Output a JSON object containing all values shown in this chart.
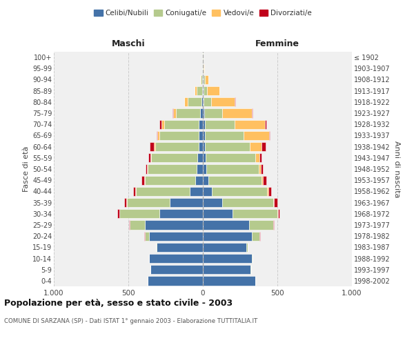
{
  "age_groups": [
    "0-4",
    "5-9",
    "10-14",
    "15-19",
    "20-24",
    "25-29",
    "30-34",
    "35-39",
    "40-44",
    "45-49",
    "50-54",
    "55-59",
    "60-64",
    "65-69",
    "70-74",
    "75-79",
    "80-84",
    "85-89",
    "90-94",
    "95-99",
    "100+"
  ],
  "birth_years": [
    "1998-2002",
    "1993-1997",
    "1988-1992",
    "1983-1987",
    "1978-1982",
    "1973-1977",
    "1968-1972",
    "1963-1967",
    "1958-1962",
    "1953-1957",
    "1948-1952",
    "1943-1947",
    "1938-1942",
    "1933-1937",
    "1928-1932",
    "1923-1927",
    "1918-1922",
    "1913-1917",
    "1908-1912",
    "1903-1907",
    "≤ 1902"
  ],
  "males": {
    "celibi": [
      370,
      350,
      360,
      310,
      360,
      390,
      290,
      220,
      90,
      50,
      40,
      35,
      30,
      30,
      30,
      20,
      10,
      5,
      4,
      2,
      2
    ],
    "coniugati": [
      2,
      2,
      3,
      5,
      30,
      100,
      270,
      290,
      360,
      340,
      330,
      310,
      290,
      260,
      230,
      160,
      90,
      35,
      10,
      3,
      1
    ],
    "vedovi": [
      0,
      0,
      0,
      0,
      1,
      2,
      2,
      2,
      2,
      3,
      4,
      5,
      8,
      15,
      20,
      20,
      25,
      15,
      5,
      1,
      0
    ],
    "divorziati": [
      0,
      0,
      0,
      1,
      2,
      3,
      10,
      15,
      15,
      20,
      12,
      15,
      30,
      5,
      10,
      3,
      0,
      0,
      0,
      0,
      0
    ]
  },
  "females": {
    "nubili": [
      350,
      320,
      330,
      290,
      330,
      310,
      200,
      130,
      60,
      35,
      25,
      20,
      15,
      15,
      15,
      10,
      5,
      5,
      4,
      2,
      2
    ],
    "coniugate": [
      1,
      2,
      3,
      10,
      50,
      160,
      300,
      340,
      370,
      360,
      350,
      330,
      300,
      260,
      200,
      120,
      50,
      25,
      10,
      3,
      1
    ],
    "vedove": [
      0,
      0,
      0,
      0,
      1,
      2,
      3,
      5,
      8,
      10,
      15,
      30,
      80,
      170,
      200,
      200,
      160,
      80,
      25,
      5,
      2
    ],
    "divorziate": [
      0,
      0,
      0,
      1,
      2,
      3,
      12,
      25,
      20,
      20,
      15,
      15,
      25,
      5,
      10,
      5,
      2,
      0,
      0,
      0,
      0
    ]
  },
  "colors": {
    "celibi": "#4472a8",
    "coniugati": "#b5ca8d",
    "vedovi": "#ffc060",
    "divorziati": "#c0001a"
  },
  "title": "Popolazione per età, sesso e stato civile - 2003",
  "subtitle": "COMUNE DI SARZANA (SP) - Dati ISTAT 1° gennaio 2003 - Elaborazione TUTTITALIA.IT",
  "xlabel_left": "Maschi",
  "xlabel_right": "Femmine",
  "ylabel_left": "Fasce di età",
  "ylabel_right": "Anni di nascita",
  "xlim": 1000
}
